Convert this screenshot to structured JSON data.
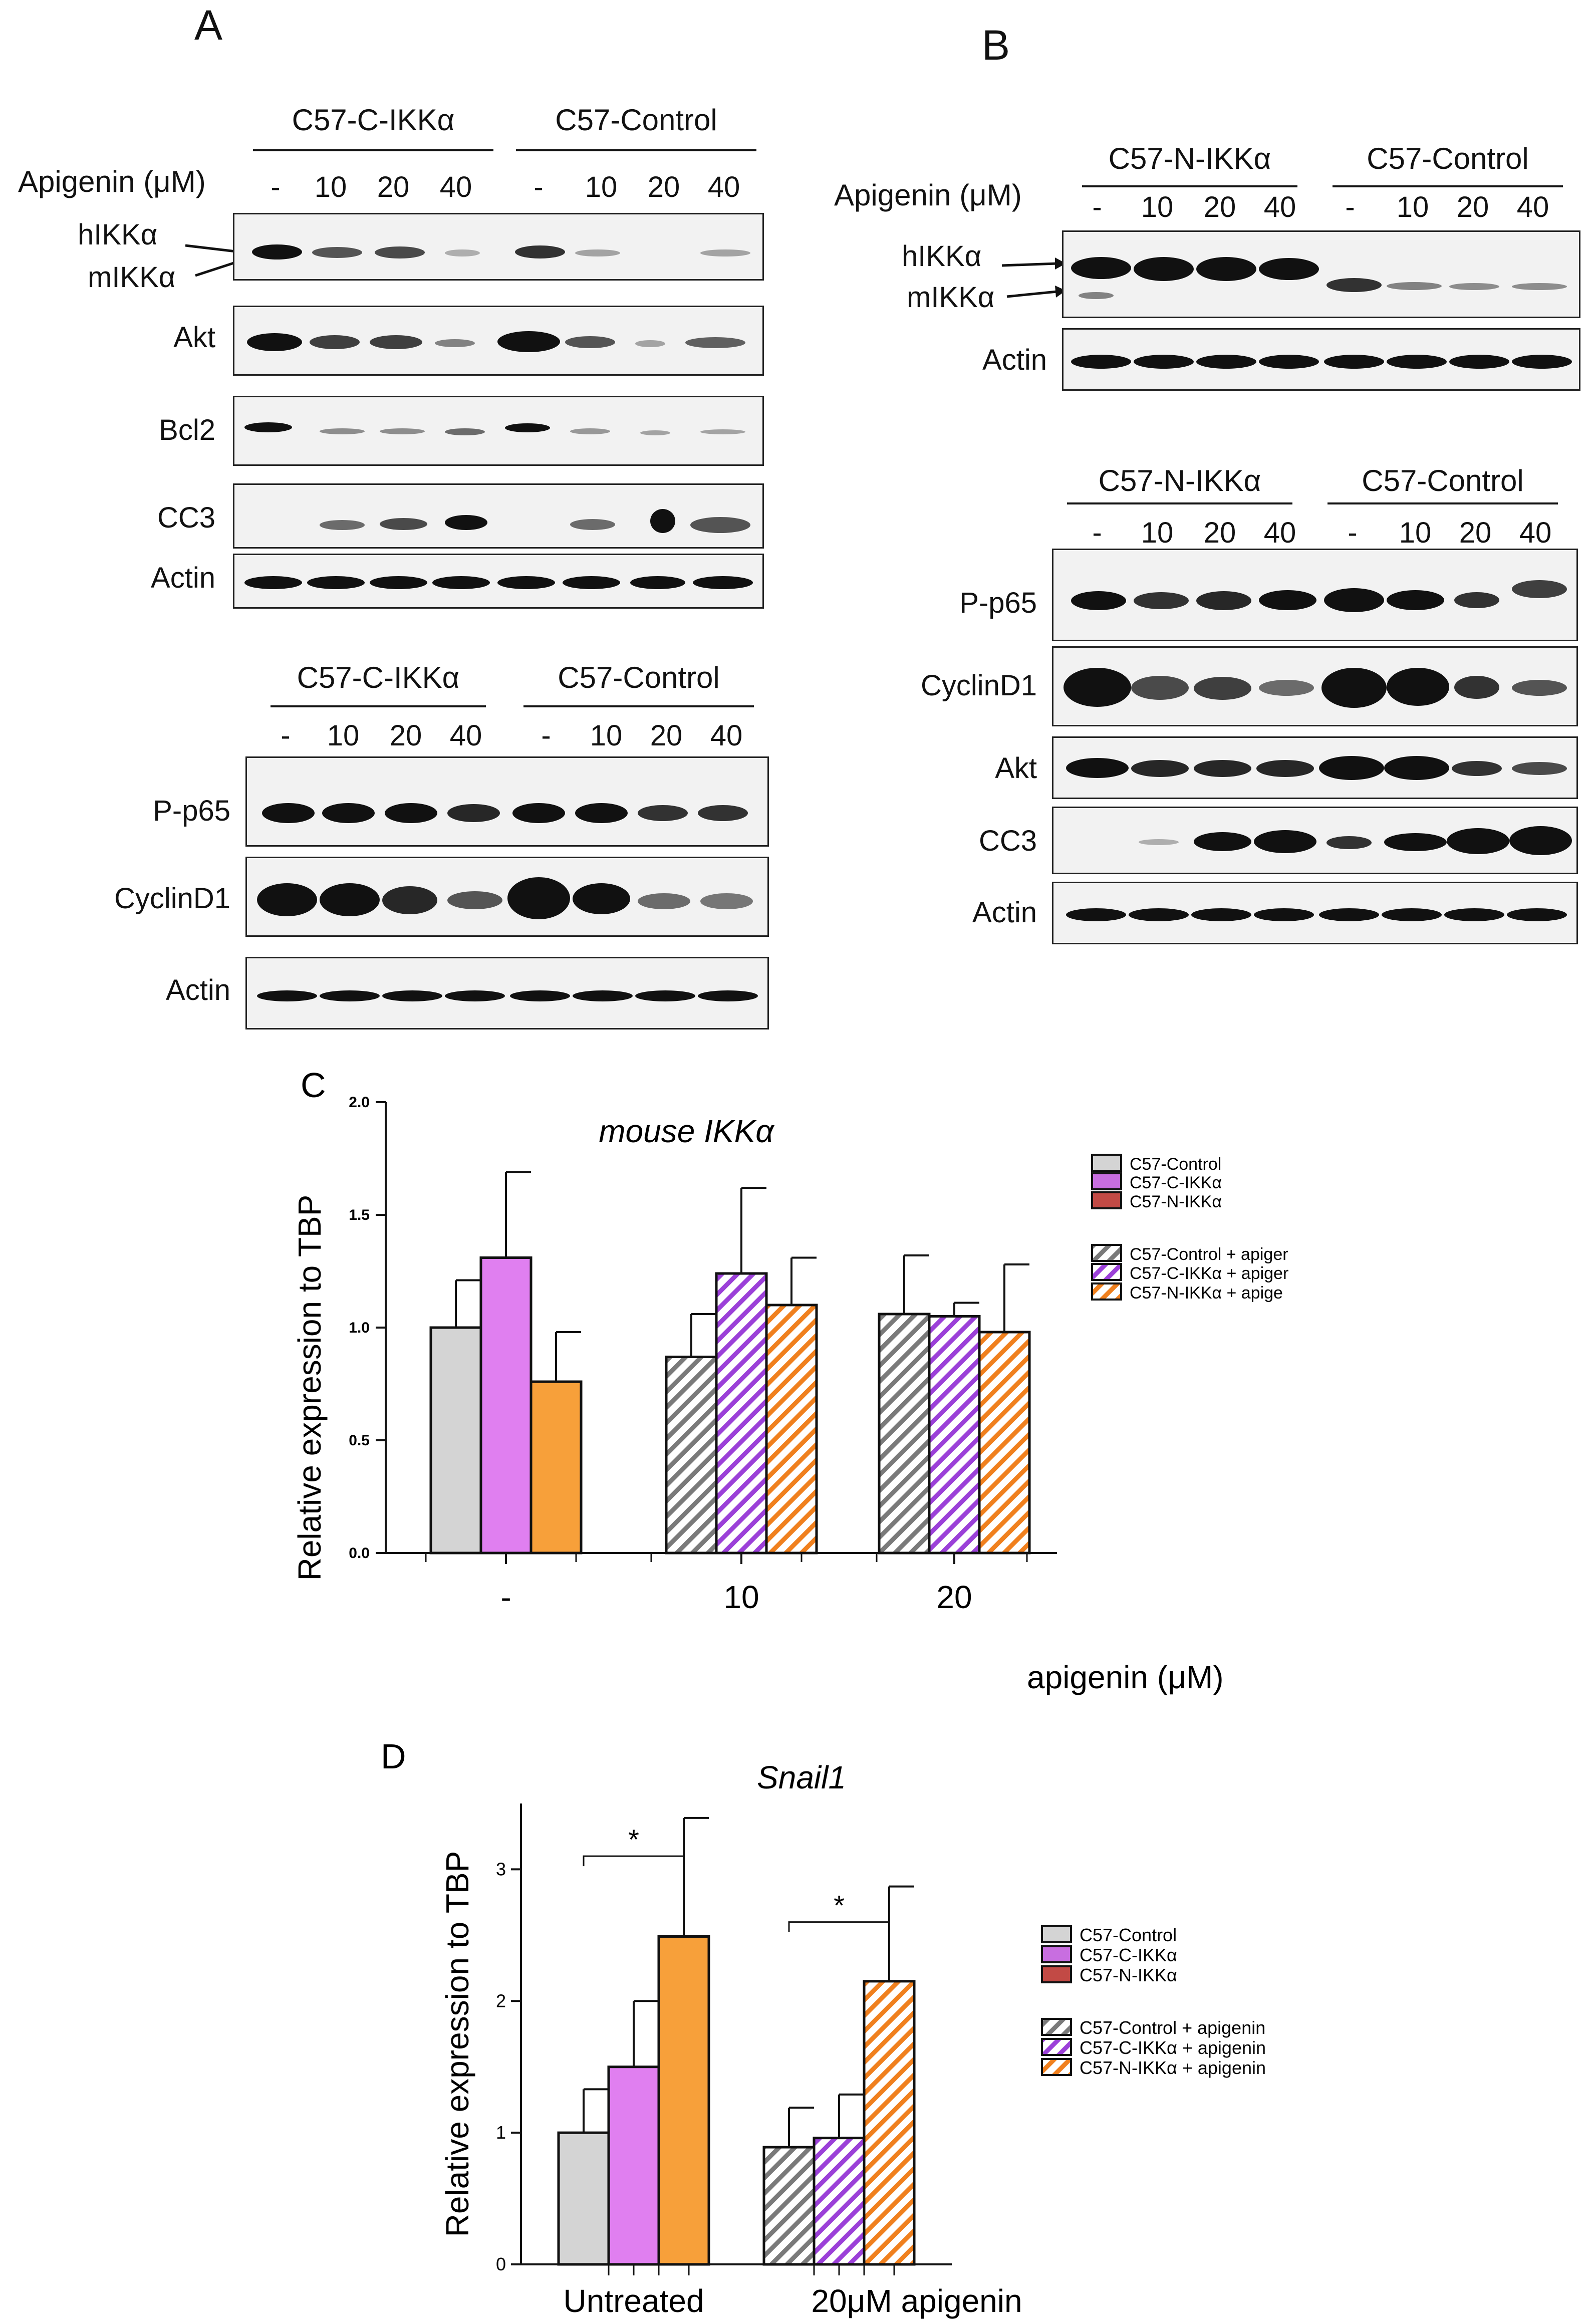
{
  "panelA": {
    "letter": "A",
    "top_groups": [
      "C57-C-IKKα",
      "C57-Control"
    ],
    "treatment_label": "Apigenin (μM)",
    "doses_top": [
      "-",
      "10",
      "20",
      "40",
      "-",
      "10",
      "20",
      "40"
    ],
    "arrow_labels": [
      "hIKKα",
      "mIKKα"
    ],
    "rows_top": [
      "Akt",
      "Bcl2",
      "CC3",
      "Actin"
    ],
    "bottom_groups": [
      "C57-C-IKKα",
      "C57-Control"
    ],
    "doses_bottom": [
      "-",
      "10",
      "20",
      "40",
      "-",
      "10",
      "20",
      "40"
    ],
    "rows_bottom": [
      "P-p65",
      "CyclinD1",
      "Actin"
    ]
  },
  "panelB": {
    "letter": "B",
    "top_groups": [
      "C57-N-IKKα",
      "C57-Control"
    ],
    "treatment_label": "Apigenin (μM)",
    "doses_top": [
      "-",
      "10",
      "20",
      "40",
      "-",
      "10",
      "20",
      "40"
    ],
    "arrow_labels": [
      "hIKKα",
      "mIKKα"
    ],
    "rows_top": [
      "Actin"
    ],
    "bottom_groups": [
      "C57-N-IKKα",
      "C57-Control"
    ],
    "doses_bottom": [
      "-",
      "10",
      "20",
      "40",
      "-",
      "10",
      "20",
      "40"
    ],
    "rows_bottom": [
      "P-p65",
      "CyclinD1",
      "Akt",
      "CC3",
      "Actin"
    ]
  },
  "chart_data": [
    {
      "panel": "C",
      "type": "bar",
      "title": "mouse IKKα",
      "ylabel": "Relative expression to TBP",
      "xlabel": "apigenin (μM)",
      "categories": [
        "-",
        "10",
        "20"
      ],
      "ylim": [
        0,
        2.0
      ],
      "yticks": [
        "0.0",
        "0.5",
        "1.0",
        "1.5",
        "2.0"
      ],
      "series": [
        {
          "name": "C57-Control",
          "values": [
            1.0,
            null,
            null
          ],
          "errors": [
            0.21,
            null,
            null
          ]
        },
        {
          "name": "C57-C-IKKα",
          "values": [
            1.31,
            null,
            null
          ],
          "errors": [
            0.38,
            null,
            null
          ]
        },
        {
          "name": "C57-N-IKKα",
          "values": [
            0.76,
            null,
            null
          ],
          "errors": [
            0.22,
            null,
            null
          ]
        },
        {
          "name": "C57-Control + apigenin",
          "values": [
            null,
            0.87,
            1.06
          ],
          "errors": [
            null,
            0.19,
            0.26
          ]
        },
        {
          "name": "C57-C-IKKα + apigenin",
          "values": [
            null,
            1.24,
            1.05
          ],
          "errors": [
            null,
            0.38,
            0.06
          ]
        },
        {
          "name": "C57-N-IKKα + apigenin",
          "values": [
            null,
            1.1,
            0.98
          ],
          "errors": [
            null,
            0.21,
            0.3
          ]
        }
      ],
      "legend_text": [
        "C57-Control",
        "C57-C-IKKα",
        "C57-N-IKKα",
        "C57-Control + apiger",
        "C57-C-IKKα + apiger",
        "C57-N-IKKα + apige"
      ],
      "colors": [
        "#d4d4d4",
        "#e07ff0",
        "#f7a03a",
        "#7a7a7a",
        "#9b40d8",
        "#f0801e"
      ],
      "legend_swatch_colors": [
        "#d4d4d4",
        "#c86ee0",
        "#c24a45"
      ],
      "legend": "top-right"
    },
    {
      "panel": "D",
      "type": "bar",
      "title": "Snail1",
      "ylabel": "Relative expression to TBP",
      "categories": [
        "Untreated",
        "20μM  apigenin"
      ],
      "ylim": [
        0,
        3.5
      ],
      "yticks": [
        "0",
        "1",
        "2",
        "3"
      ],
      "series": [
        {
          "name": "C57-Control",
          "values": [
            1.0,
            null
          ],
          "errors": [
            0.33,
            null
          ]
        },
        {
          "name": "C57-C-IKKα",
          "values": [
            1.5,
            null
          ],
          "errors": [
            0.5,
            null
          ]
        },
        {
          "name": "C57-N-IKKα",
          "values": [
            2.49,
            null
          ],
          "errors": [
            0.9,
            null
          ]
        },
        {
          "name": "C57-Control + apigenin",
          "values": [
            null,
            0.89
          ],
          "errors": [
            null,
            0.3
          ]
        },
        {
          "name": "C57-C-IKKα + apigenin",
          "values": [
            null,
            0.96
          ],
          "errors": [
            null,
            0.33
          ]
        },
        {
          "name": "C57-N-IKKα + apigenin",
          "values": [
            null,
            2.15
          ],
          "errors": [
            null,
            0.72
          ]
        }
      ],
      "significance": [
        "*",
        "*"
      ],
      "legend_text": [
        "C57-Control",
        "C57-C-IKKα",
        "C57-N-IKKα",
        "C57-Control + apigenin",
        "C57-C-IKKα + apigenin",
        "C57-N-IKKα + apigenin"
      ],
      "colors": [
        "#d4d4d4",
        "#e07ff0",
        "#f7a03a",
        "#7a7a7a",
        "#9b40d8",
        "#f0801e"
      ],
      "legend_swatch_colors": [
        "#d4d4d4",
        "#c86ee0",
        "#c24a45"
      ],
      "legend": "right"
    }
  ]
}
